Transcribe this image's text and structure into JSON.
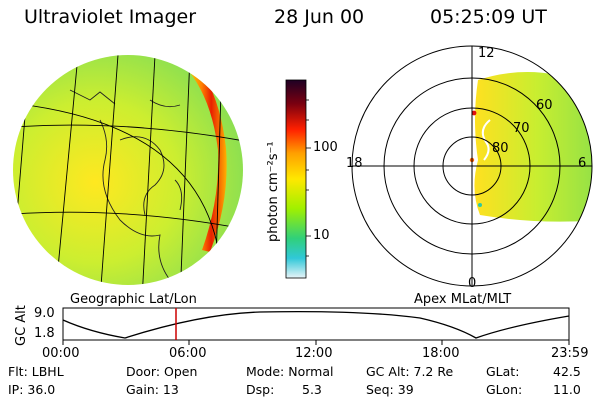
{
  "header": {
    "instrument": "Ultraviolet Imager",
    "date": "28 Jun 00",
    "time": "05:25:09 UT"
  },
  "geo_panel": {
    "caption": "Geographic Lat/Lon"
  },
  "colorbar": {
    "unit_label": "photon cm⁻²s⁻¹",
    "ticks": [
      "100",
      "10"
    ],
    "scale": "log",
    "colors": [
      "#1e0024",
      "#7a0010",
      "#ff2000",
      "#ffa000",
      "#ffe800",
      "#a0f000",
      "#30d07a",
      "#30c8d8",
      "#e8f4f8"
    ]
  },
  "polar_panel": {
    "caption": "Apex MLat/MLT",
    "mlt_labels": {
      "top": "12",
      "bottom": "0",
      "left": "18",
      "right": "6"
    },
    "mlat_labels": [
      "60",
      "70",
      "80"
    ]
  },
  "altitude_track": {
    "ylabel": "GC Alt",
    "y_ticks": [
      "9.0",
      "1.8"
    ],
    "x_ticks": [
      "00:00",
      "06:00",
      "12:00",
      "18:00",
      "23:59"
    ],
    "marker_color": "#cc0000"
  },
  "status": {
    "flt": "Flt: LBHL",
    "ip": "IP: 36.0",
    "door": "Door: Open",
    "gain": "Gain: 13",
    "mode": "Mode: Normal",
    "dsp_label": "Dsp:",
    "dsp_value": "5.3",
    "gc_alt": "GC Alt: 7.2 Re",
    "seq": "Seq: 39",
    "glat_label": "GLat:",
    "glat_value": "42.5",
    "glon_label": "GLon:",
    "glon_value": "11.0"
  }
}
